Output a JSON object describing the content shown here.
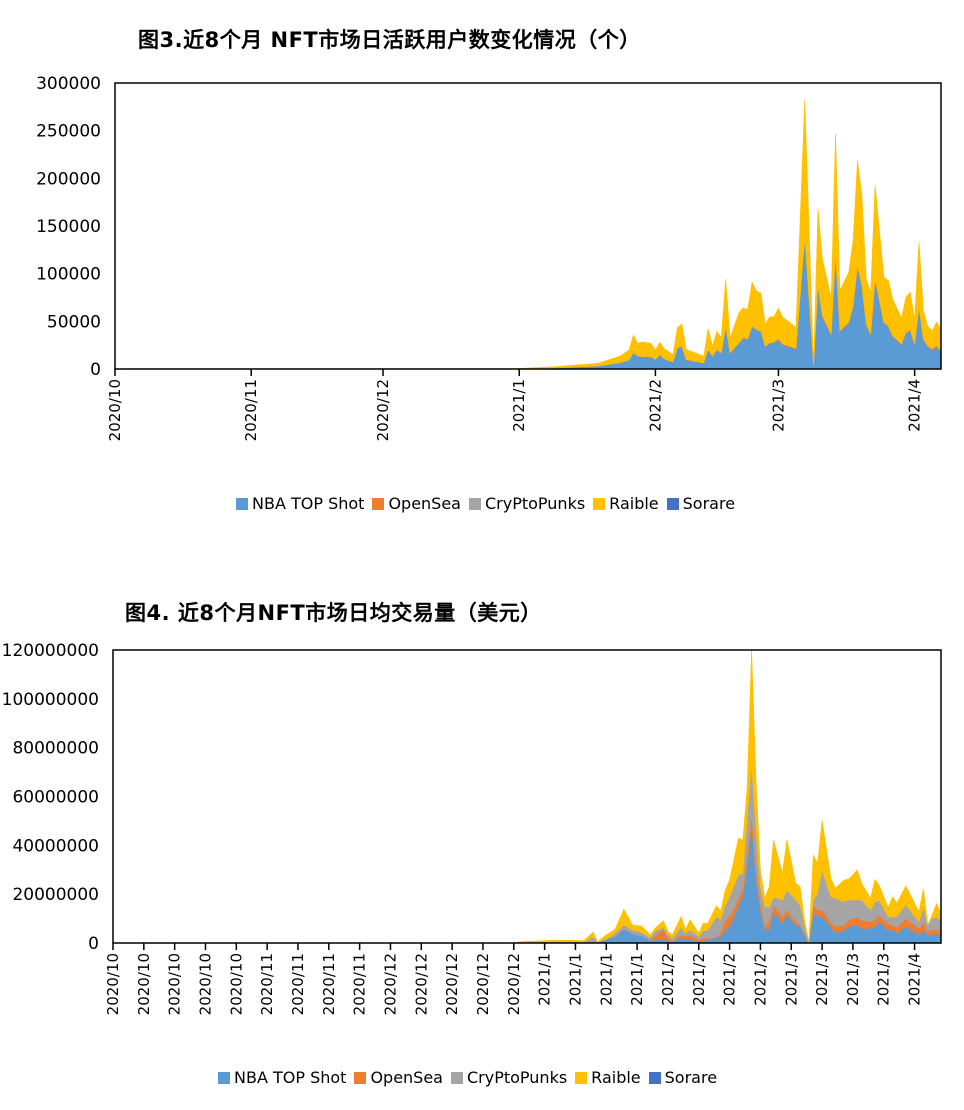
{
  "chart_data": [
    {
      "type": "area",
      "stacked": true,
      "title": "图3.近8个月 NFT市场日活跃用户数变化情况（个）",
      "xlabel": "",
      "ylabel": "",
      "ylim": [
        0,
        300000
      ],
      "xlim": [
        "2020-10-01",
        "2021-04-07"
      ],
      "yticks": [
        "0",
        "50000",
        "100000",
        "150000",
        "200000",
        "250000",
        "300000"
      ],
      "ytick_values": [
        0,
        50000,
        100000,
        150000,
        200000,
        250000,
        300000
      ],
      "xticks": [
        {
          "date": "2020-10-01",
          "label": "2020/10"
        },
        {
          "date": "2020-11-01",
          "label": "2020/11"
        },
        {
          "date": "2020-12-01",
          "label": "2020/12"
        },
        {
          "date": "2021-01-01",
          "label": "2021/1"
        },
        {
          "date": "2021-02-01",
          "label": "2021/2"
        },
        {
          "date": "2021-03-01",
          "label": "2021/3"
        },
        {
          "date": "2021-04-01",
          "label": "2021/4"
        }
      ],
      "grid": false,
      "legend_position": "bottom",
      "x": [
        "2020-10-01",
        "2020-12-31",
        "2021-01-09",
        "2021-01-19",
        "2021-01-24",
        "2021-01-26",
        "2021-01-27",
        "2021-01-28",
        "2021-01-29",
        "2021-01-31",
        "2021-02-01",
        "2021-02-02",
        "2021-02-03",
        "2021-02-05",
        "2021-02-06",
        "2021-02-07",
        "2021-02-08",
        "2021-02-10",
        "2021-02-12",
        "2021-02-13",
        "2021-02-14",
        "2021-02-15",
        "2021-02-16",
        "2021-02-17",
        "2021-02-18",
        "2021-02-20",
        "2021-02-21",
        "2021-02-22",
        "2021-02-23",
        "2021-02-24",
        "2021-02-25",
        "2021-02-26",
        "2021-02-27",
        "2021-02-28",
        "2021-03-01",
        "2021-03-02",
        "2021-03-05",
        "2021-03-07",
        "2021-03-09",
        "2021-03-10",
        "2021-03-11",
        "2021-03-13",
        "2021-03-14",
        "2021-03-15",
        "2021-03-17",
        "2021-03-18",
        "2021-03-19",
        "2021-03-20",
        "2021-03-21",
        "2021-03-22",
        "2021-03-23",
        "2021-03-25",
        "2021-03-26",
        "2021-03-27",
        "2021-03-29",
        "2021-03-30",
        "2021-03-31",
        "2021-04-01",
        "2021-04-02",
        "2021-04-03",
        "2021-04-04",
        "2021-04-05",
        "2021-04-06",
        "2021-04-07"
      ],
      "series": [
        {
          "name": "NBA TOP Shot",
          "color": "#5B9BD5",
          "values": [
            0,
            0,
            1000,
            3150,
            6650,
            9450,
            17150,
            13650,
            12950,
            12950,
            9450,
            14700,
            10150,
            7000,
            21700,
            23450,
            9450,
            7700,
            5950,
            19950,
            12950,
            19950,
            16450,
            44450,
            16450,
            26950,
            32200,
            31150,
            44450,
            40950,
            39200,
            23450,
            26950,
            27650,
            30450,
            25200,
            20650,
            137200,
            4200,
            86450,
            54950,
            35700,
            121450,
            39200,
            47950,
            65450,
            107450,
            86450,
            46200,
            35700,
            93450,
            47950,
            44450,
            33950,
            25200,
            37450,
            40250,
            25200,
            63700,
            30450,
            23450,
            19950,
            23450,
            18200
          ]
        },
        {
          "name": "OpenSea",
          "color": "#ED7D31",
          "values": [
            0,
            0,
            0,
            0,
            0,
            0,
            0,
            0,
            0,
            0,
            500,
            500,
            500,
            500,
            500,
            500,
            500,
            500,
            500,
            500,
            500,
            500,
            500,
            500,
            500,
            500,
            500,
            500,
            500,
            500,
            500,
            500,
            500,
            500,
            1000,
            1000,
            1000,
            1000,
            0,
            1000,
            1000,
            1000,
            1000,
            1000,
            1000,
            1000,
            1000,
            1000,
            1000,
            1000,
            1000,
            1000,
            1000,
            1000,
            1000,
            1000,
            1000,
            1000,
            1000,
            1000,
            1000,
            1000,
            1000,
            1000
          ]
        },
        {
          "name": "CryPtoPunks",
          "color": "#A5A5A5"
        },
        {
          "name": "Raible",
          "color": "#FFC000",
          "values": [
            300,
            300,
            1450,
            2800,
            7000,
            10500,
            18550,
            13300,
            15400,
            14000,
            9800,
            12950,
            10500,
            7700,
            21000,
            23450,
            10500,
            8750,
            7000,
            21700,
            10500,
            19250,
            15750,
            49700,
            15750,
            31500,
            31500,
            30800,
            46200,
            40250,
            40250,
            22750,
            27300,
            26600,
            32200,
            28000,
            22050,
            144550,
            0,
            80500,
            59500,
            38500,
            124250,
            42000,
            52500,
            68250,
            110250,
            94500,
            47250,
            43750,
            98700,
            47250,
            47250,
            38500,
            26950,
            36750,
            39200,
            26250,
            68950,
            29750,
            20300,
            19250,
            24500,
            23450
          ]
        },
        {
          "name": "Sorare",
          "color": "#4472C4"
        }
      ]
    },
    {
      "type": "area",
      "stacked": true,
      "title": "图4. 近8个月NFT市场日均交易量（美元）",
      "xlabel": "",
      "ylabel": "",
      "ylim": [
        0,
        120000000
      ],
      "xlim": [
        "2020-10-01",
        "2021-04-07"
      ],
      "yticks": [
        "0",
        "20000000",
        "40000000",
        "60000000",
        "80000000",
        "100000000",
        "120000000"
      ],
      "ytick_values": [
        0,
        20000000,
        40000000,
        60000000,
        80000000,
        100000000,
        120000000
      ],
      "xticks": [
        {
          "date": "2020-10-01",
          "label": "2020/10"
        },
        {
          "date": "2020-10-08",
          "label": "2020/10"
        },
        {
          "date": "2020-10-15",
          "label": "2020/10"
        },
        {
          "date": "2020-10-22",
          "label": "2020/10"
        },
        {
          "date": "2020-10-29",
          "label": "2020/10"
        },
        {
          "date": "2020-11-05",
          "label": "2020/11"
        },
        {
          "date": "2020-11-12",
          "label": "2020/11"
        },
        {
          "date": "2020-11-19",
          "label": "2020/11"
        },
        {
          "date": "2020-11-26",
          "label": "2020/11"
        },
        {
          "date": "2020-12-03",
          "label": "2020/12"
        },
        {
          "date": "2020-12-10",
          "label": "2020/12"
        },
        {
          "date": "2020-12-17",
          "label": "2020/12"
        },
        {
          "date": "2020-12-24",
          "label": "2020/12"
        },
        {
          "date": "2020-12-31",
          "label": "2020/12"
        },
        {
          "date": "2021-01-07",
          "label": "2021/1"
        },
        {
          "date": "2021-01-14",
          "label": "2021/1"
        },
        {
          "date": "2021-01-21",
          "label": "2021/1"
        },
        {
          "date": "2021-01-28",
          "label": "2021/1"
        },
        {
          "date": "2021-02-04",
          "label": "2021/2"
        },
        {
          "date": "2021-02-11",
          "label": "2021/2"
        },
        {
          "date": "2021-02-18",
          "label": "2021/2"
        },
        {
          "date": "2021-02-25",
          "label": "2021/2"
        },
        {
          "date": "2021-03-04",
          "label": "2021/3"
        },
        {
          "date": "2021-03-11",
          "label": "2021/3"
        },
        {
          "date": "2021-03-18",
          "label": "2021/3"
        },
        {
          "date": "2021-03-25",
          "label": "2021/3"
        },
        {
          "date": "2021-04-01",
          "label": "2021/4"
        }
      ],
      "grid": false,
      "legend_position": "bottom",
      "x": [
        "2020-10-01",
        "2020-12-31",
        "2021-01-01",
        "2021-01-10",
        "2021-01-16",
        "2021-01-18",
        "2021-01-19",
        "2021-01-21",
        "2021-01-23",
        "2021-01-25",
        "2021-01-27",
        "2021-01-29",
        "2021-01-31",
        "2021-02-01",
        "2021-02-03",
        "2021-02-04",
        "2021-02-05",
        "2021-02-07",
        "2021-02-08",
        "2021-02-09",
        "2021-02-11",
        "2021-02-12",
        "2021-02-13",
        "2021-02-15",
        "2021-02-16",
        "2021-02-17",
        "2021-02-18",
        "2021-02-20",
        "2021-02-21",
        "2021-02-22",
        "2021-02-23",
        "2021-02-24",
        "2021-02-25",
        "2021-02-26",
        "2021-02-27",
        "2021-02-28",
        "2021-03-02",
        "2021-03-03",
        "2021-03-05",
        "2021-03-06",
        "2021-03-07",
        "2021-03-08",
        "2021-03-09",
        "2021-03-10",
        "2021-03-11",
        "2021-03-13",
        "2021-03-14",
        "2021-03-16",
        "2021-03-17",
        "2021-03-19",
        "2021-03-20",
        "2021-03-22",
        "2021-03-23",
        "2021-03-24",
        "2021-03-26",
        "2021-03-27",
        "2021-03-28",
        "2021-03-30",
        "2021-04-02",
        "2021-04-03",
        "2021-04-04",
        "2021-04-05",
        "2021-04-06",
        "2021-04-07"
      ],
      "series": [
        {
          "name": "NBA TOP Shot",
          "color": "#5B9BD5",
          "values": [
            0,
            0,
            0,
            0,
            0,
            500000,
            300000,
            1500000,
            2600000,
            5600000,
            3700000,
            2900000,
            1200000,
            1200000,
            1500000,
            1000000,
            500000,
            1900000,
            1500000,
            1600000,
            500000,
            1000000,
            1200000,
            2200000,
            2600000,
            5300000,
            6700000,
            14900000,
            19000000,
            31300000,
            47600000,
            25800000,
            12800000,
            5600000,
            5600000,
            12800000,
            8100000,
            11500000,
            7400000,
            6700000,
            3300000,
            0,
            12100000,
            11100000,
            10800000,
            6700000,
            4000000,
            5300000,
            6700000,
            7400000,
            6000000,
            6000000,
            6700000,
            8700000,
            5300000,
            5300000,
            4000000,
            6700000,
            3300000,
            5300000,
            3300000,
            3700000,
            3500000,
            3300000
          ]
        },
        {
          "name": "OpenSea",
          "color": "#ED7D31",
          "values": [
            0,
            0,
            0,
            0,
            0,
            0,
            0,
            0,
            0,
            300000,
            0,
            0,
            0,
            1600000,
            4100000,
            1000000,
            0,
            1400000,
            1400000,
            1600000,
            700000,
            1000000,
            700000,
            400000,
            1600000,
            4100000,
            4100000,
            3000000,
            3400000,
            4800000,
            5500000,
            4100000,
            3400000,
            1100000,
            3100000,
            2700000,
            2700000,
            2000000,
            1400000,
            700000,
            700000,
            0,
            3400000,
            2500000,
            2700000,
            2000000,
            2700000,
            2000000,
            2700000,
            3100000,
            3400000,
            2700000,
            2700000,
            2700000,
            2700000,
            2000000,
            2500000,
            3400000,
            2700000,
            3400000,
            1400000,
            1600000,
            2000000,
            2000000
          ]
        },
        {
          "name": "CryPtoPunks",
          "color": "#A5A5A5",
          "values": [
            0,
            0,
            300000,
            600000,
            500000,
            2000000,
            200000,
            0,
            1400000,
            1500000,
            1600000,
            1400000,
            1000000,
            2000000,
            800000,
            1600000,
            1400000,
            3100000,
            1100000,
            2300000,
            1400000,
            3000000,
            3400000,
            8200000,
            5500000,
            6100000,
            8200000,
            10000000,
            6100000,
            15700000,
            20500000,
            16400000,
            6800000,
            8200000,
            6100000,
            3400000,
            6800000,
            8200000,
            8900000,
            8200000,
            3400000,
            300000,
            2000000,
            6800000,
            16400000,
            10200000,
            11600000,
            9600000,
            8200000,
            7100000,
            8200000,
            4800000,
            7500000,
            6100000,
            2700000,
            3400000,
            4400000,
            5500000,
            2700000,
            6100000,
            2700000,
            4800000,
            5200000,
            3400000
          ]
        },
        {
          "name": "Raible",
          "color": "#FFC000",
          "values": [
            0,
            0,
            200000,
            600000,
            500000,
            2000000,
            0,
            1800000,
            1600000,
            6400000,
            2000000,
            2700000,
            1100000,
            1100000,
            2700000,
            1100000,
            1400000,
            4400000,
            1400000,
            4100000,
            1400000,
            3100000,
            2700000,
            4400000,
            3500000,
            6100000,
            6800000,
            15000000,
            13700000,
            12300000,
            46400000,
            20500000,
            6800000,
            3400000,
            8200000,
            23200000,
            10900000,
            20700000,
            6800000,
            7500000,
            2000000,
            200000,
            18400000,
            12300000,
            20500000,
            7500000,
            4100000,
            8900000,
            8500000,
            12300000,
            6800000,
            4800000,
            9100000,
            6100000,
            3800000,
            8200000,
            5500000,
            7800000,
            4100000,
            7500000,
            0,
            1400000,
            5500000,
            3400000
          ]
        },
        {
          "name": "Sorare",
          "color": "#4472C4"
        }
      ]
    }
  ]
}
